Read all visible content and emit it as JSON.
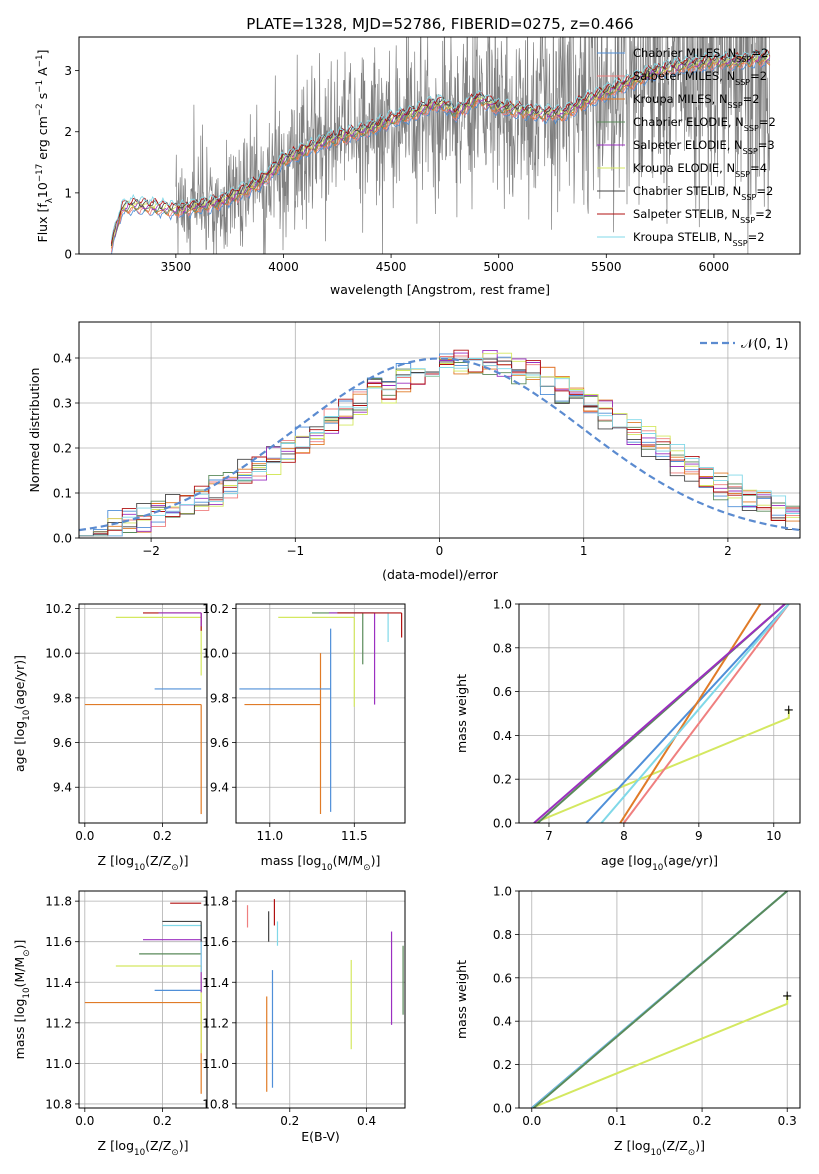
{
  "figure": {
    "title": "PLATE=1328, MJD=52786, FIBERID=0275, z=0.466",
    "legend_entries": [
      {
        "label": "Chabrier MILES, N",
        "sub": "SSP",
        "tail": "=2",
        "color": "#4f8fd8"
      },
      {
        "label": "Salpeter MILES, N",
        "sub": "SSP",
        "tail": "=2",
        "color": "#ef7f7f"
      },
      {
        "label": "Kroupa MILES, N",
        "sub": "SSP",
        "tail": "=2",
        "color": "#e07b27"
      },
      {
        "label": "Chabrier ELODIE, N",
        "sub": "SSP",
        "tail": "=2",
        "color": "#5a8a5a"
      },
      {
        "label": "Salpeter ELODIE, N",
        "sub": "SSP",
        "tail": "=3",
        "color": "#9b30c0"
      },
      {
        "label": "Kroupa ELODIE, N",
        "sub": "SSP",
        "tail": "=4",
        "color": "#d4e860"
      },
      {
        "label": "Chabrier STELIB, N",
        "sub": "SSP",
        "tail": "=2",
        "color": "#444444"
      },
      {
        "label": "Salpeter STELIB, N",
        "sub": "SSP",
        "tail": "=2",
        "color": "#b01010"
      },
      {
        "label": "Kroupa STELIB, N",
        "sub": "SSP",
        "tail": "=2",
        "color": "#80d8e8"
      }
    ],
    "hist_legend": "𝒩(0, 1)"
  },
  "chart_data": [
    {
      "type": "line",
      "panel": "spectrum",
      "xlabel": "wavelength [Angstrom, rest frame]",
      "ylabel": "Flux [f",
      "ylabel_sub": "λ",
      "ylabel_rest": "10",
      "ylabel_exp": "−17",
      "ylabel_unit": " erg cm",
      "ylabel_exp2": "−2",
      "ylabel_unit2": " s",
      "ylabel_exp3": "−1",
      "ylabel_unit3": " A",
      "ylabel_exp4": "−1",
      "ylabel_end": "]",
      "xlim": [
        3050,
        6400
      ],
      "ylim": [
        0,
        3.55
      ],
      "xticks": [
        3500,
        4000,
        4500,
        5000,
        5500,
        6000
      ],
      "yticks": [
        0,
        1,
        2,
        3
      ],
      "grid": false,
      "legend": "top-right",
      "model_start": 3200,
      "model_end": 6260,
      "data_start": 3500,
      "continuum": [
        [
          3200,
          0.15
        ],
        [
          3250,
          0.75
        ],
        [
          3300,
          0.8
        ],
        [
          3400,
          0.77
        ],
        [
          3500,
          0.72
        ],
        [
          3600,
          0.78
        ],
        [
          3700,
          0.85
        ],
        [
          3800,
          1.0
        ],
        [
          3900,
          1.2
        ],
        [
          3950,
          1.35
        ],
        [
          4000,
          1.55
        ],
        [
          4100,
          1.7
        ],
        [
          4200,
          1.85
        ],
        [
          4300,
          1.95
        ],
        [
          4400,
          2.05
        ],
        [
          4500,
          2.2
        ],
        [
          4600,
          2.3
        ],
        [
          4700,
          2.45
        ],
        [
          4750,
          2.45
        ],
        [
          4800,
          2.3
        ],
        [
          4900,
          2.55
        ],
        [
          5000,
          2.4
        ],
        [
          5100,
          2.35
        ],
        [
          5200,
          2.3
        ],
        [
          5300,
          2.3
        ],
        [
          5400,
          2.5
        ],
        [
          5500,
          2.65
        ],
        [
          5600,
          2.8
        ],
        [
          5700,
          2.95
        ],
        [
          5800,
          3.05
        ],
        [
          5900,
          3.1
        ],
        [
          6000,
          3.15
        ],
        [
          6100,
          3.15
        ],
        [
          6200,
          3.2
        ],
        [
          6260,
          3.2
        ]
      ]
    },
    {
      "type": "bar",
      "panel": "residual-histogram",
      "xlabel": "(data-model)/error",
      "ylabel": "Normed distribution",
      "xlim": [
        -2.5,
        2.5
      ],
      "ylim": [
        0,
        0.48
      ],
      "xticks": [
        -2,
        -1,
        0,
        1,
        2
      ],
      "yticks": [
        0,
        0.1,
        0.2,
        0.3,
        0.4
      ],
      "grid": true,
      "legend": "top-right",
      "bin_width": 0.1,
      "gaussian": {
        "mean": 0,
        "sigma": 1
      }
    },
    {
      "type": "scatter",
      "panel": "Z-vs-age",
      "xlabel": "Z [log",
      "xlabel_sub": "10",
      "xlabel_rest": "(Z/Z",
      "xlabel_sub2": "⊙",
      "xlabel_end": ")]",
      "ylabel": "age  [log",
      "ylabel_sub": "10",
      "ylabel_rest": "(age/yr)]",
      "xlim": [
        -0.015,
        0.315
      ],
      "ylim": [
        9.24,
        10.22
      ],
      "xticks": [
        0.0,
        0.2
      ],
      "yticks": [
        9.4,
        9.6,
        9.8,
        10.0,
        10.2
      ],
      "grid": true,
      "series": [
        {
          "color": "#e07b27",
          "x": [
            0.0,
            0.3
          ],
          "y": 9.77,
          "err_from": 9.28
        },
        {
          "color": "#4f8fd8",
          "x": [
            0.18,
            0.3
          ],
          "y": 9.84,
          "err_from": 9.84
        },
        {
          "color": "#d4e860",
          "x": [
            0.08,
            0.3
          ],
          "y": 10.16,
          "err_from": 9.9
        },
        {
          "color": "#b01010",
          "x": [
            0.15,
            0.3
          ],
          "y": 10.18,
          "err_from": 10.1
        },
        {
          "color": "#9b30c0",
          "x": [
            0.19,
            0.3
          ],
          "y": 10.18,
          "err_from": 10.12
        }
      ]
    },
    {
      "type": "scatter",
      "panel": "mass-vs-age",
      "xlabel": "mass [log",
      "xlabel_sub": "10",
      "xlabel_rest": "(M/M",
      "xlabel_sub2": "⊙",
      "xlabel_end": ")]",
      "xlim": [
        10.8,
        11.8
      ],
      "ylim": [
        9.24,
        10.22
      ],
      "xticks": [
        11.0,
        11.5
      ],
      "yticks": [
        9.4,
        9.6,
        9.8,
        10.0,
        10.2
      ],
      "grid": true,
      "series": [
        {
          "color": "#e07b27",
          "x": [
            10.85,
            11.3
          ],
          "y": 9.77,
          "err": [
            9.28,
            10.0
          ]
        },
        {
          "color": "#4f8fd8",
          "x": [
            10.82,
            11.36
          ],
          "y": 9.84,
          "err": [
            9.29,
            10.11
          ]
        },
        {
          "color": "#d4e860",
          "x": [
            11.05,
            11.5
          ],
          "y": 10.16,
          "err": [
            9.76,
            10.16
          ]
        },
        {
          "color": "#5a8a5a",
          "x": [
            11.25,
            11.55
          ],
          "y": 10.18,
          "err": [
            9.95,
            10.18
          ]
        },
        {
          "color": "#9b30c0",
          "x": [
            11.35,
            11.62
          ],
          "y": 10.18,
          "err": [
            9.77,
            10.18
          ]
        },
        {
          "color": "#80d8e8",
          "x": [
            11.45,
            11.7
          ],
          "y": 10.18,
          "err": [
            10.05,
            10.18
          ]
        },
        {
          "color": "#b01010",
          "x": [
            11.4,
            11.78
          ],
          "y": 10.18,
          "err": [
            10.07,
            10.18
          ]
        }
      ]
    },
    {
      "type": "line",
      "panel": "age-cumulative-mass-weight",
      "xlabel": "age  [log",
      "xlabel_sub": "10",
      "xlabel_rest": "(age/yr)]",
      "ylabel": "mass weight",
      "xlim": [
        6.6,
        10.35
      ],
      "ylim": [
        0,
        1.0
      ],
      "xticks": [
        7,
        8,
        9,
        10
      ],
      "yticks": [
        0.0,
        0.2,
        0.4,
        0.6,
        0.8,
        1.0
      ],
      "grid": true,
      "series": [
        {
          "color": "#d4e860",
          "points": [
            [
              6.8,
              0
            ],
            [
              10.2,
              0.48
            ],
            [
              10.2,
              0.52
            ]
          ]
        },
        {
          "color": "#4f8fd8",
          "points": [
            [
              7.5,
              0
            ],
            [
              10.2,
              1.0
            ]
          ]
        },
        {
          "color": "#e07b27",
          "points": [
            [
              7.95,
              0
            ],
            [
              9.82,
              1.0
            ]
          ]
        },
        {
          "color": "#ef7f7f",
          "points": [
            [
              8.0,
              0
            ],
            [
              10.2,
              1.0
            ]
          ]
        },
        {
          "color": "#80d8e8",
          "points": [
            [
              7.7,
              0
            ],
            [
              10.2,
              1.0
            ]
          ]
        },
        {
          "color": "#5a8a5a",
          "points": [
            [
              6.85,
              0
            ],
            [
              10.15,
              1.0
            ]
          ]
        },
        {
          "color": "#9b30c0",
          "points": [
            [
              6.8,
              0
            ],
            [
              10.15,
              1.0
            ]
          ]
        }
      ]
    },
    {
      "type": "scatter",
      "panel": "Z-vs-mass",
      "xlabel": "Z [log",
      "xlabel_sub": "10",
      "xlabel_rest": "(Z/Z",
      "xlabel_sub2": "⊙",
      "xlabel_end": ")]",
      "ylabel": "mass [log",
      "ylabel_sub": "10",
      "ylabel_rest": "(M/M",
      "ylabel_sub2": "⊙",
      "ylabel_end": ")]",
      "xlim": [
        -0.015,
        0.315
      ],
      "ylim": [
        10.78,
        11.85
      ],
      "xticks": [
        0.0,
        0.2
      ],
      "yticks": [
        10.8,
        11.0,
        11.2,
        11.4,
        11.6,
        11.8
      ],
      "grid": true,
      "series": [
        {
          "color": "#e07b27",
          "x": [
            0.0,
            0.3
          ],
          "y": 11.3,
          "err_from": 10.85
        },
        {
          "color": "#4f8fd8",
          "x": [
            0.18,
            0.3
          ],
          "y": 11.36,
          "err_from": 11.36
        },
        {
          "color": "#d4e860",
          "x": [
            0.08,
            0.3
          ],
          "y": 11.48,
          "err_from": 11.05
        },
        {
          "color": "#5a8a5a",
          "x": [
            0.14,
            0.3
          ],
          "y": 11.54,
          "err_from": 11.54
        },
        {
          "color": "#9b30c0",
          "x": [
            0.15,
            0.3
          ],
          "y": 11.61,
          "err_from": 11.35
        },
        {
          "color": "#80d8e8",
          "x": [
            0.2,
            0.3
          ],
          "y": 11.68,
          "err_from": 11.45
        },
        {
          "color": "#444444",
          "x": [
            0.2,
            0.3
          ],
          "y": 11.7,
          "err_from": 11.6
        },
        {
          "color": "#b01010",
          "x": [
            0.22,
            0.3
          ],
          "y": 11.79,
          "err_from": 11.79
        }
      ]
    },
    {
      "type": "scatter",
      "panel": "EBV-vs-mass",
      "xlabel": "E(B-V)",
      "xlim": [
        0.06,
        0.5
      ],
      "ylim": [
        10.78,
        11.85
      ],
      "xticks": [
        0.2,
        0.4
      ],
      "yticks": [
        10.8,
        11.0,
        11.2,
        11.4,
        11.6,
        11.8
      ],
      "grid": true,
      "series": [
        {
          "color": "#ef7f7f",
          "x": 0.09,
          "err": [
            11.67,
            11.78
          ]
        },
        {
          "color": "#e07b27",
          "x": 0.14,
          "err": [
            10.86,
            11.33
          ]
        },
        {
          "color": "#4f8fd8",
          "x": 0.155,
          "err": [
            10.88,
            11.46
          ]
        },
        {
          "color": "#444444",
          "x": 0.145,
          "err": [
            11.6,
            11.75
          ]
        },
        {
          "color": "#b01010",
          "x": 0.16,
          "err": [
            11.68,
            11.81
          ]
        },
        {
          "color": "#80d8e8",
          "x": 0.168,
          "err": [
            11.58,
            11.7
          ]
        },
        {
          "color": "#d4e860",
          "x": 0.36,
          "err": [
            11.07,
            11.51
          ]
        },
        {
          "color": "#9b30c0",
          "x": 0.465,
          "err": [
            11.19,
            11.65
          ]
        },
        {
          "color": "#5a8a5a",
          "x": 0.495,
          "err": [
            11.24,
            11.58
          ]
        }
      ]
    },
    {
      "type": "line",
      "panel": "Z-cumulative-mass-weight",
      "xlabel": "Z [log",
      "xlabel_sub": "10",
      "xlabel_rest": "(Z/Z",
      "xlabel_sub2": "⊙",
      "xlabel_end": ")]",
      "ylabel": "mass weight",
      "xlim": [
        -0.015,
        0.315
      ],
      "ylim": [
        0,
        1.0
      ],
      "xticks": [
        0.0,
        0.1,
        0.2,
        0.3
      ],
      "yticks": [
        0.0,
        0.2,
        0.4,
        0.6,
        0.8,
        1.0
      ],
      "grid": true,
      "series": [
        {
          "color": "#d4e860",
          "points": [
            [
              0.0,
              0
            ],
            [
              0.3,
              0.48
            ],
            [
              0.3,
              0.52
            ]
          ]
        },
        {
          "color": "#4f8fd8",
          "points": [
            [
              0.0,
              0
            ],
            [
              0.3,
              1.0
            ]
          ]
        },
        {
          "color": "#80d8e8",
          "points": [
            [
              0.001,
              0
            ],
            [
              0.3,
              1.0
            ]
          ]
        },
        {
          "color": "#5a8a5a",
          "points": [
            [
              0.002,
              0
            ],
            [
              0.3,
              1.0
            ]
          ]
        }
      ]
    }
  ]
}
